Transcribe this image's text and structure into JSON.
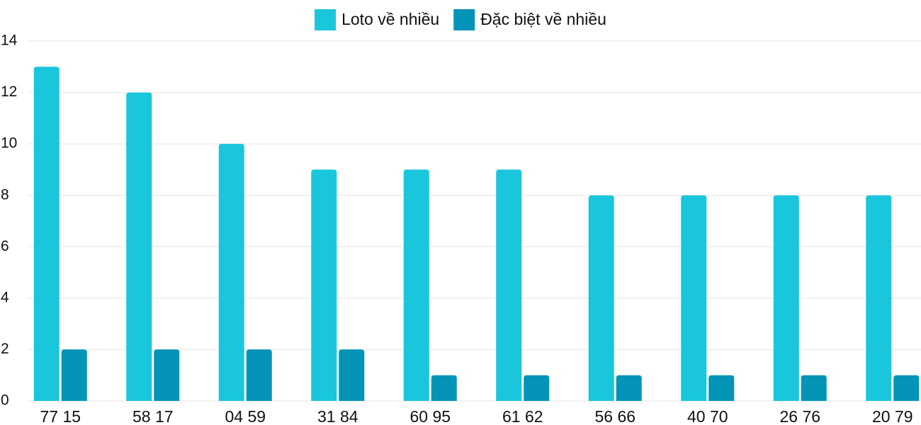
{
  "chart_data": {
    "type": "bar",
    "categories": [
      "77 15",
      "58 17",
      "04 59",
      "31 84",
      "60 95",
      "61 62",
      "56 66",
      "40 70",
      "26 76",
      "20 79"
    ],
    "series": [
      {
        "name": "Loto về nhiều",
        "color": "#1ac6dc",
        "values": [
          13,
          12,
          10,
          9,
          9,
          9,
          8,
          8,
          8,
          8
        ]
      },
      {
        "name": "Đặc biệt về nhiều",
        "color": "#0494b8",
        "values": [
          2,
          2,
          2,
          2,
          1,
          1,
          1,
          1,
          1,
          1
        ]
      }
    ],
    "ylim": [
      0,
      14
    ],
    "yticks": [
      0,
      2,
      4,
      6,
      8,
      10,
      12,
      14
    ],
    "grid": true,
    "legend": "top"
  }
}
